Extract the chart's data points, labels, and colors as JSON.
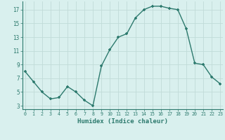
{
  "x": [
    0,
    1,
    2,
    3,
    4,
    5,
    6,
    7,
    8,
    9,
    10,
    11,
    12,
    13,
    14,
    15,
    16,
    17,
    18,
    19,
    20,
    21,
    22,
    23
  ],
  "y": [
    8.0,
    6.5,
    5.0,
    4.0,
    4.2,
    5.8,
    5.0,
    3.8,
    3.0,
    8.8,
    11.2,
    13.0,
    13.5,
    15.8,
    17.0,
    17.5,
    17.5,
    17.2,
    17.0,
    14.2,
    9.2,
    9.0,
    7.2,
    6.2
  ],
  "xlabel": "Humidex (Indice chaleur)",
  "yticks": [
    3,
    5,
    7,
    9,
    11,
    13,
    15,
    17
  ],
  "xticks": [
    0,
    1,
    2,
    3,
    4,
    5,
    6,
    7,
    8,
    9,
    10,
    11,
    12,
    13,
    14,
    15,
    16,
    17,
    18,
    19,
    20,
    21,
    22,
    23
  ],
  "xlim": [
    -0.3,
    23.3
  ],
  "ylim": [
    2.5,
    18.2
  ],
  "line_color": "#2d7a6e",
  "marker_color": "#2d7a6e",
  "bg_color": "#d9f0ee",
  "grid_color": "#c0dbd8"
}
